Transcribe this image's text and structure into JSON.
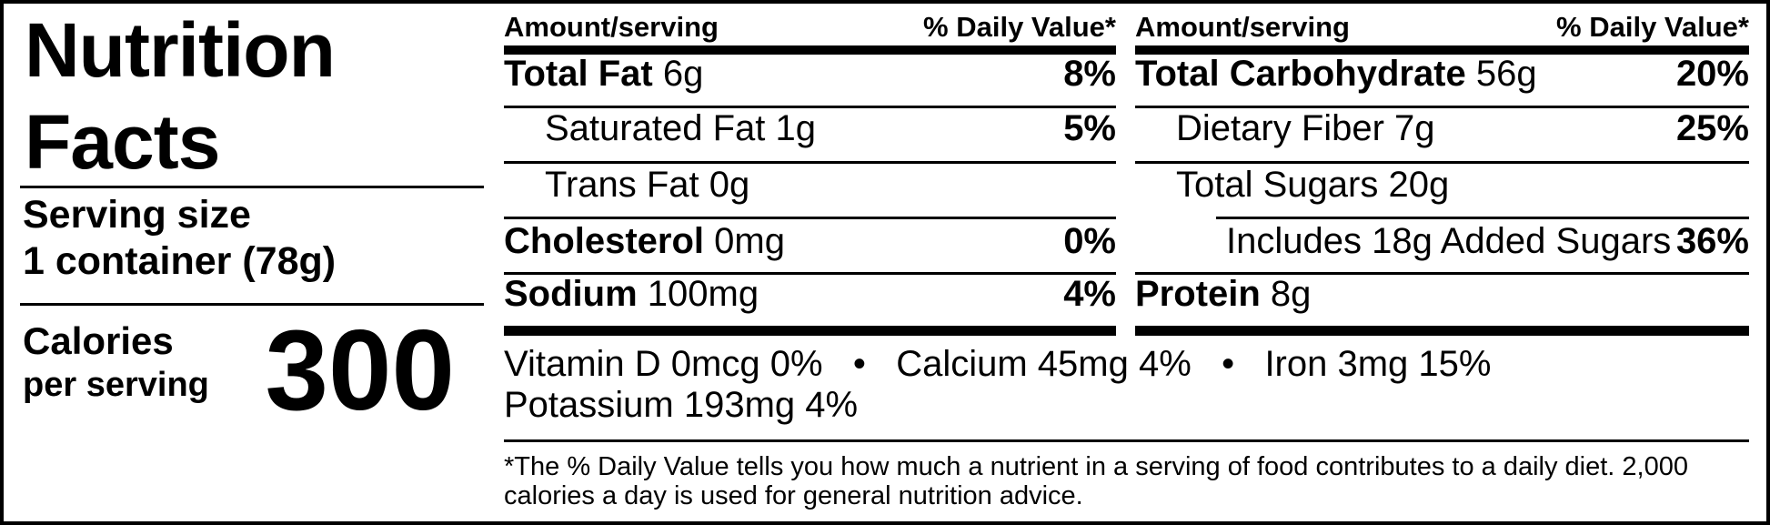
{
  "colors": {
    "text": "#000000",
    "background": "#ffffff",
    "rule": "#000000"
  },
  "header": {
    "title": "Nutrition Facts",
    "serving_size_label": "Serving size",
    "serving_size_value": "1 container (78g)",
    "calories_label": "Calories",
    "calories_sublabel": "per serving",
    "calories_value": "300"
  },
  "columns": [
    {
      "header": {
        "amount": "Amount/serving",
        "daily_value": "% Daily Value*"
      },
      "rows": [
        {
          "name": "Total Fat",
          "amount": "6g",
          "dv": "8%"
        },
        {
          "name": "Saturated Fat 1g",
          "amount": "",
          "dv": "5%"
        },
        {
          "name": "Trans Fat 0g",
          "amount": "",
          "dv": ""
        },
        {
          "name": "Cholesterol",
          "amount": "0mg",
          "dv": "0%"
        },
        {
          "name": "Sodium",
          "amount": "100mg",
          "dv": "4%"
        }
      ]
    },
    {
      "header": {
        "amount": "Amount/serving",
        "daily_value": "% Daily Value*"
      },
      "rows": [
        {
          "name": "Total Carbohydrate",
          "amount": "56g",
          "dv": "20%"
        },
        {
          "name": "Dietary Fiber 7g",
          "amount": "",
          "dv": "25%"
        },
        {
          "name": "Total Sugars 20g",
          "amount": "",
          "dv": ""
        },
        {
          "name": "Includes 18g Added Sugars",
          "amount": "",
          "dv": "36%"
        },
        {
          "name": "Protein",
          "amount": "8g",
          "dv": ""
        }
      ]
    }
  ],
  "micronutrients": {
    "line1": "Vitamin D 0mcg 0%   •   Calcium 45mg 4%   •   Iron 3mg 15%",
    "line2": "Potassium 193mg 4%"
  },
  "footnote": "*The % Daily Value tells you how much a nutrient in a serving of food contributes to a daily diet. 2,000 calories a day is used for general nutrition advice."
}
